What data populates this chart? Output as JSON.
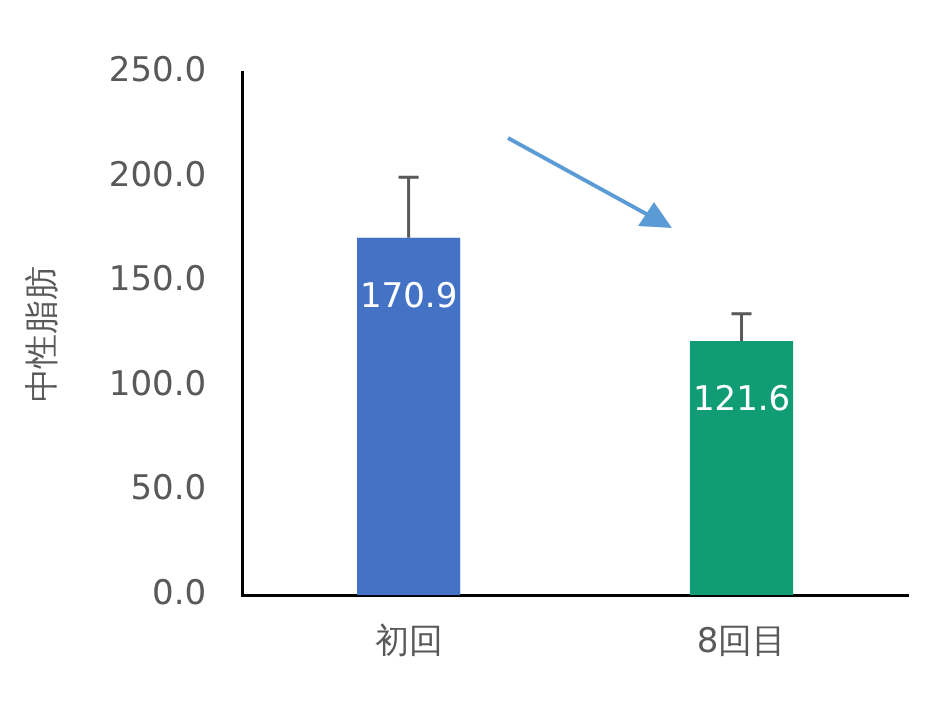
{
  "chart_data": {
    "type": "bar",
    "ylabel": "中性脂肪",
    "categories": [
      "初回",
      "8回目"
    ],
    "values": [
      170.9,
      121.6
    ],
    "colors": [
      "#4472c4",
      "#109c74"
    ],
    "errors": [
      29,
      13
    ],
    "data_labels": true,
    "ylim": [
      0,
      250
    ],
    "yticks": [
      {
        "value": 0,
        "label": "0.0"
      },
      {
        "value": 50,
        "label": "50.0"
      },
      {
        "value": 100,
        "label": "100.0"
      },
      {
        "value": 150,
        "label": "150.0"
      },
      {
        "value": 200,
        "label": "200.0"
      },
      {
        "value": 250,
        "label": "250.0"
      }
    ],
    "grid": false,
    "legend": false
  }
}
